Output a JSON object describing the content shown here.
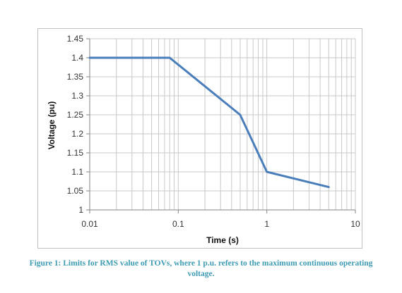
{
  "chart_data": {
    "type": "line",
    "title": "",
    "xlabel": "Time (s)",
    "ylabel": "Voltage (pu)",
    "xscale": "log",
    "xlim": [
      0.01,
      10
    ],
    "ylim": [
      1,
      1.45
    ],
    "xticks": [
      "0.01",
      "0.1",
      "1",
      "10"
    ],
    "yticks": [
      "1",
      "1.05",
      "1.1",
      "1.15",
      "1.2",
      "1.25",
      "1.3",
      "1.35",
      "1.4",
      "1.45"
    ],
    "grid": true,
    "legend": "none",
    "series": [
      {
        "color": "#4a7ebb",
        "x": [
          0.01,
          0.08,
          0.5,
          1,
          5
        ],
        "y": [
          1.4,
          1.4,
          1.25,
          1.1,
          1.06
        ]
      }
    ]
  },
  "caption": {
    "line1": "Figure 1: Limits for RMS value of TOVs, where 1 p.u. refers to the maximum continuous operating",
    "line2": "voltage."
  }
}
